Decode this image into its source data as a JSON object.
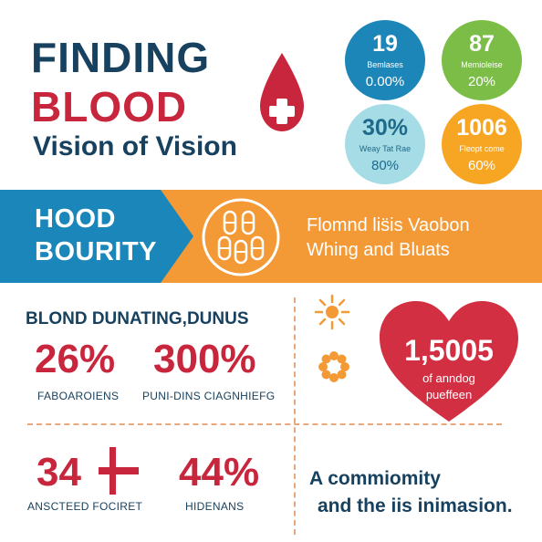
{
  "header": {
    "title_line1": "FINDING",
    "title_line2": "BLOOD",
    "subtitle": "Vision of Vision"
  },
  "circles": [
    {
      "number": "19",
      "label": "Bemlases",
      "percent": "0.00%",
      "color": "#1d86b8"
    },
    {
      "number": "87",
      "label": "Memioleise",
      "percent": "20%",
      "color": "#7bbd46"
    },
    {
      "number": "30%",
      "label": "Weay Tat Rae",
      "percent": "80%",
      "color": "#a6dce5"
    },
    {
      "number": "1006",
      "label": "Fleopt come",
      "percent": "60%",
      "color": "#f6a623"
    }
  ],
  "band": {
    "title_line1": "HOOD",
    "title_line2": "BOURITY",
    "text_line1": "Flomnd lis̈is Vaobon",
    "text_line2": "Whing and Bluats",
    "blue": "#1a86b9",
    "orange": "#f39a37"
  },
  "section": {
    "title": "BLOND DUNATING,DUNUS",
    "stats": [
      {
        "value": "26%",
        "label": "FABOAROIENS"
      },
      {
        "value": "300%",
        "label": "PUNI-DINS CIAGNHIEFG"
      },
      {
        "value": "34",
        "label": "ANSCTEED FOCIRET"
      },
      {
        "value": "44%",
        "label": "HIDENANS"
      }
    ]
  },
  "heart": {
    "number": "1,5005",
    "line1": "of anndog",
    "line2": "pueffeen",
    "color": "#d22f43"
  },
  "bottom": {
    "line1": "A commiomity",
    "line2": "and the iis inimasion."
  },
  "colors": {
    "navy": "#17415e",
    "red": "#c8263d",
    "accent_orange": "#f39a37"
  },
  "icons": [
    "blood-drop-icon",
    "pills-icon",
    "sun-icon",
    "flower-icon",
    "plus-icon"
  ]
}
